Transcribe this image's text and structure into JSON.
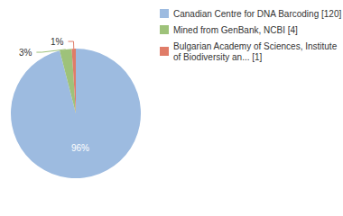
{
  "chart_data": {
    "type": "pie",
    "categories": [
      "Canadian Centre for DNA Barcoding [120]",
      "Mined from GenBank, NCBI [4]",
      "Bulgarian Academy of Sciences, Institute of Biodiversity an... [1]"
    ],
    "values": [
      96,
      3,
      1
    ],
    "value_labels": [
      "96%",
      "3%",
      "1%"
    ],
    "colors": [
      "#9dbbe0",
      "#9ec27a",
      "#e07c68"
    ],
    "data_labels": true,
    "legend": "upper right"
  }
}
